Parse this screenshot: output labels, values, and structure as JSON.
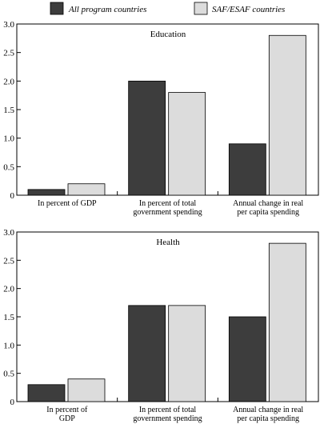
{
  "legend": {
    "items": [
      {
        "label": "All program countries",
        "color": "#3d3d3d"
      },
      {
        "label": "SAF/ESAF countries",
        "color": "#dcdcdc"
      }
    ]
  },
  "chart_data": [
    {
      "type": "bar",
      "title": "Education",
      "categories": [
        [
          "In percent of GDP"
        ],
        [
          "In percent of total",
          "government spending"
        ],
        [
          "Annual change in real",
          "per capita spending"
        ]
      ],
      "series": [
        {
          "name": "All program countries",
          "values": [
            0.1,
            2.0,
            0.9
          ],
          "color": "#3d3d3d"
        },
        {
          "name": "SAF/ESAF countries",
          "values": [
            0.2,
            1.8,
            2.8
          ],
          "color": "#dcdcdc"
        }
      ],
      "ylim": [
        0,
        3.0
      ],
      "yticks": [
        "0",
        "0.5",
        "1.0",
        "1.5",
        "2.0",
        "2.5",
        "3.0"
      ],
      "grid": false
    },
    {
      "type": "bar",
      "title": "Health",
      "categories": [
        [
          "In percent of",
          "GDP"
        ],
        [
          "In percent of total",
          "government spending"
        ],
        [
          "Annual change in real",
          "per capita spending"
        ]
      ],
      "series": [
        {
          "name": "All program countries",
          "values": [
            0.3,
            1.7,
            1.5
          ],
          "color": "#3d3d3d"
        },
        {
          "name": "SAF/ESAF countries",
          "values": [
            0.4,
            1.7,
            2.8
          ],
          "color": "#dcdcdc"
        }
      ],
      "ylim": [
        0,
        3.0
      ],
      "yticks": [
        "0",
        "0.5",
        "1.0",
        "1.5",
        "2.0",
        "2.5",
        "3.0"
      ],
      "grid": false
    }
  ]
}
